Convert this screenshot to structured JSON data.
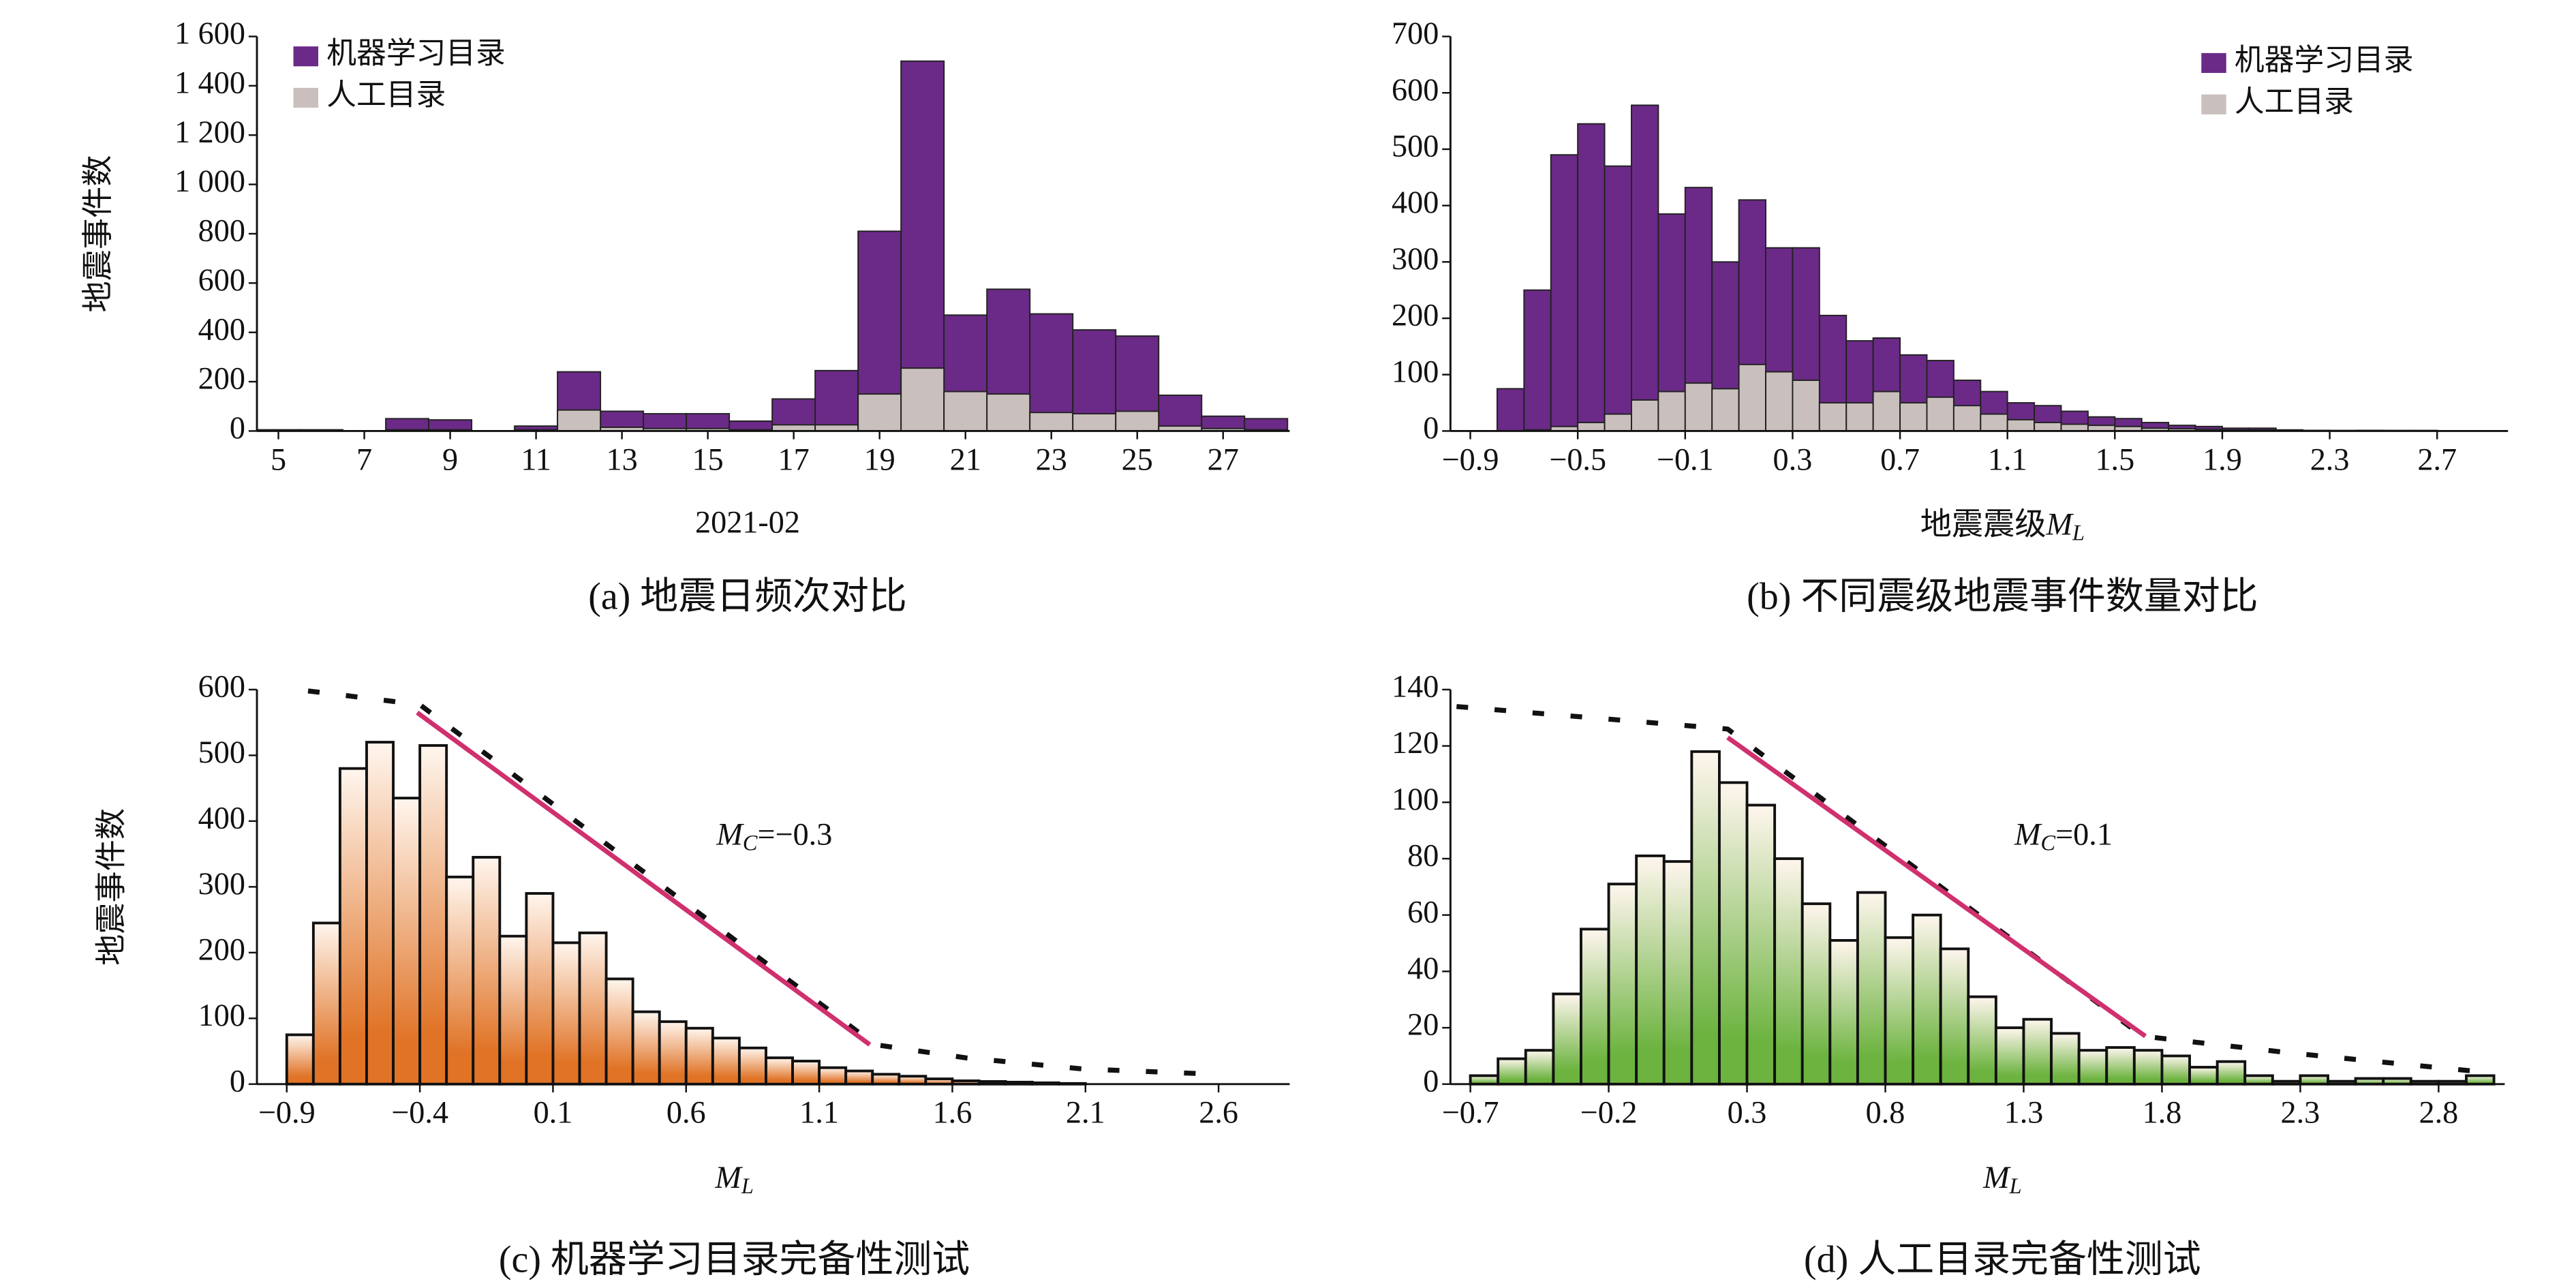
{
  "chart_data": [
    {
      "type": "bar",
      "caption": "(a) 地震日频次对比",
      "ylabel": "地震事件数",
      "xlabel": "2021-02",
      "x": [
        5,
        6,
        7,
        8,
        9,
        10,
        11,
        12,
        13,
        14,
        15,
        16,
        17,
        18,
        19,
        20,
        21,
        22,
        23,
        24,
        25,
        26,
        27,
        28
      ],
      "series": [
        {
          "name": "机器学习目录",
          "color": "#6b2a87",
          "values": [
            5,
            5,
            0,
            50,
            45,
            0,
            20,
            240,
            80,
            70,
            70,
            40,
            130,
            245,
            810,
            1500,
            470,
            575,
            475,
            410,
            385,
            145,
            60,
            50
          ]
        },
        {
          "name": "人工目录",
          "color": "#c9c0bd",
          "values": [
            2,
            2,
            0,
            5,
            5,
            0,
            5,
            85,
            15,
            10,
            10,
            5,
            25,
            25,
            150,
            255,
            160,
            150,
            75,
            70,
            80,
            20,
            10,
            5
          ]
        }
      ],
      "xlim": [
        4.5,
        28.55
      ],
      "xticks": [
        5,
        7,
        9,
        11,
        13,
        15,
        17,
        19,
        21,
        23,
        25,
        27
      ],
      "ylim": [
        0,
        1600
      ],
      "yticks": [
        0,
        200,
        400,
        600,
        800,
        {
          "value": 1000,
          "label": "1 000"
        },
        {
          "value": 1200,
          "label": "1 200"
        },
        {
          "value": 1400,
          "label": "1 400"
        },
        {
          "value": 1600,
          "label": "1 600"
        }
      ],
      "legend": "upper left"
    },
    {
      "type": "histogram",
      "caption": "(b) 不同震级地震事件数量对比",
      "xlabel": {
        "prefix": "地震震级",
        "symbol": "M",
        "subscript": "L"
      },
      "bins": [
        -0.8,
        -0.7,
        -0.6,
        -0.5,
        -0.4,
        -0.3,
        -0.2,
        -0.1,
        0,
        0.1,
        0.2,
        0.3,
        0.4,
        0.5,
        0.6,
        0.7,
        0.8,
        0.9,
        1,
        1.1,
        1.2,
        1.3,
        1.4,
        1.5,
        1.6,
        1.7,
        1.8,
        1.9,
        2,
        2.1,
        2.2,
        2.3,
        2.4,
        2.5,
        2.6,
        2.7
      ],
      "series": [
        {
          "name": "机器学习目录",
          "color": "#6b2a87",
          "values": [
            75,
            250,
            490,
            545,
            470,
            578,
            385,
            432,
            300,
            410,
            325,
            325,
            205,
            160,
            165,
            135,
            125,
            90,
            70,
            50,
            45,
            35,
            25,
            22,
            15,
            10,
            8,
            5,
            5,
            2,
            1,
            1,
            1,
            1,
            1
          ]
        },
        {
          "name": "人工目录",
          "color": "#c9c0bd",
          "values": [
            0,
            2,
            8,
            15,
            30,
            55,
            70,
            85,
            75,
            118,
            105,
            90,
            50,
            50,
            70,
            50,
            60,
            45,
            30,
            20,
            15,
            12,
            10,
            8,
            5,
            4,
            3,
            2,
            2,
            1,
            1,
            0,
            1,
            0,
            0
          ]
        }
      ],
      "xlim": [
        -0.974,
        2.964
      ],
      "xticks": [
        {
          "value": -0.9,
          "label": "−0.9"
        },
        {
          "value": -0.5,
          "label": "−0.5"
        },
        {
          "value": -0.1,
          "label": "−0.1"
        },
        0.3,
        0.7,
        1.1,
        1.5,
        1.9,
        2.3,
        2.7
      ],
      "ylim": [
        0,
        700
      ],
      "yticks": [
        0,
        100,
        200,
        300,
        400,
        500,
        600,
        700
      ],
      "legend": "upper right"
    },
    {
      "type": "histogram",
      "caption": "(c) 机器学习目录完备性测试",
      "ylabel": "地震事件数",
      "xlabel": {
        "symbol": "M",
        "subscript": "L"
      },
      "bins": [
        -0.9,
        -0.8,
        -0.7,
        -0.6,
        -0.5,
        -0.4,
        -0.3,
        -0.2,
        -0.1,
        0,
        0.1,
        0.2,
        0.3,
        0.4,
        0.5,
        0.6,
        0.7,
        0.8,
        0.9,
        1,
        1.1,
        1.2,
        1.3,
        1.4,
        1.5,
        1.6,
        1.7,
        1.8,
        1.9,
        2,
        2.1
      ],
      "counts": [
        75,
        245,
        480,
        520,
        435,
        515,
        315,
        345,
        225,
        290,
        215,
        230,
        160,
        110,
        95,
        85,
        70,
        55,
        40,
        35,
        25,
        20,
        15,
        12,
        8,
        5,
        4,
        3,
        2,
        1
      ],
      "color": "#e07326",
      "fit_curve": {
        "x": [
          -0.82,
          -0.4,
          1.31,
          1.65,
          2.09,
          2.59
        ],
        "values": [
          598,
          577,
          60,
          40,
          23,
          15
        ]
      },
      "mc_line": {
        "color": "#d0306e",
        "x": [
          -0.41,
          1.29
        ],
        "values": [
          565,
          60
        ]
      },
      "annotation": {
        "symbol": "M",
        "subscript": "C",
        "text": "=−0.3"
      },
      "xlim": [
        -1.012,
        2.867
      ],
      "xticks": [
        {
          "value": -0.9,
          "label": "−0.9"
        },
        {
          "value": -0.4,
          "label": "−0.4"
        },
        0.1,
        0.6,
        1.1,
        1.6,
        2.1,
        2.6
      ],
      "ylim": [
        0,
        600
      ],
      "yticks": [
        0,
        100,
        200,
        300,
        400,
        500,
        600
      ]
    },
    {
      "type": "histogram",
      "caption": "(d) 人工目录完备性测试",
      "xlabel": {
        "symbol": "M",
        "subscript": "L"
      },
      "bins": [
        -0.7,
        -0.6,
        -0.5,
        -0.4,
        -0.3,
        -0.2,
        -0.1,
        0,
        0.1,
        0.2,
        0.3,
        0.4,
        0.5,
        0.6,
        0.7,
        0.8,
        0.9,
        1,
        1.1,
        1.2,
        1.3,
        1.4,
        1.5,
        1.6,
        1.7,
        1.8,
        1.9,
        2,
        2.1,
        2.2,
        2.3,
        2.4,
        2.5,
        2.6,
        2.7,
        2.8,
        2.9,
        3
      ],
      "counts": [
        3,
        9,
        12,
        32,
        55,
        71,
        81,
        79,
        118,
        107,
        99,
        80,
        64,
        51,
        68,
        52,
        60,
        48,
        31,
        20,
        23,
        18,
        12,
        13,
        12,
        10,
        6,
        8,
        3,
        1,
        3,
        1,
        2,
        2,
        1,
        1,
        3
      ],
      "color": "#6cb33f",
      "fit_curve": {
        "x": [
          -0.75,
          0.23,
          1.73,
          2.27,
          2.99
        ],
        "values": [
          134,
          126,
          17,
          11,
          4
        ]
      },
      "mc_line": {
        "color": "#d0306e",
        "x": [
          0.23,
          1.74
        ],
        "values": [
          123,
          17
        ]
      },
      "annotation": {
        "symbol": "M",
        "subscript": "C",
        "text": "=0.1"
      },
      "xlim": [
        -0.772,
        3.039
      ],
      "xticks": [
        {
          "value": -0.7,
          "label": "−0.7"
        },
        {
          "value": -0.2,
          "label": "−0.2"
        },
        0.3,
        0.8,
        1.3,
        1.8,
        2.3,
        2.8
      ],
      "ylim": [
        0,
        140
      ],
      "yticks": [
        0,
        20,
        40,
        60,
        80,
        100,
        120,
        140
      ]
    }
  ]
}
